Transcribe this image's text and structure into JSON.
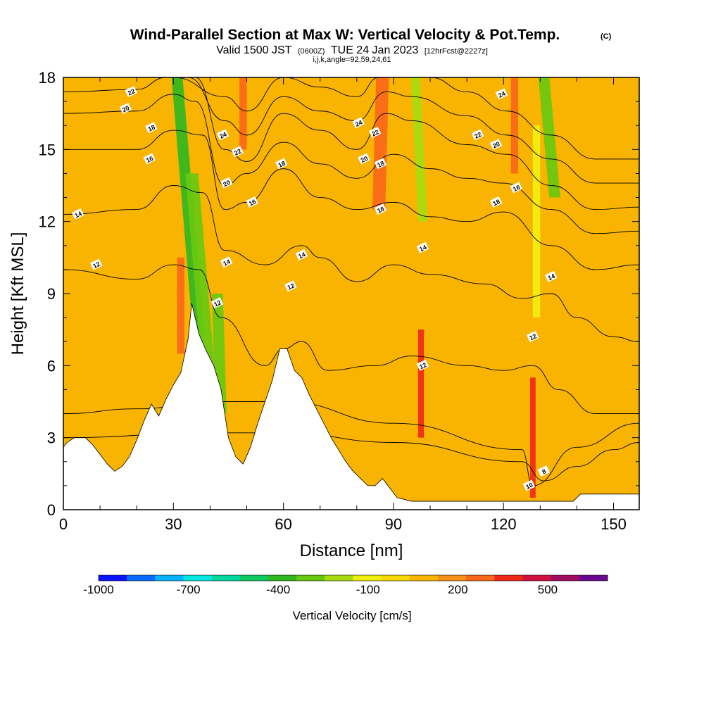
{
  "header": {
    "title_main": "Wind-Parallel Section at Max W: Vertical Velocity & Pot.Temp.",
    "title_copyright": "(C)",
    "subtitle_a": "Valid 1500 JST",
    "subtitle_b": "(0600Z)",
    "subtitle_c": "TUE 24 Jan 2023",
    "subtitle_d": "[12hrFcst@2227z]",
    "subtitle_line2": "i,j,k,angle=92,59,24,61"
  },
  "chart_data": {
    "type": "heatmap",
    "xlabel": "Distance [nm]",
    "ylabel": "Height [Kft MSL]",
    "xlim": [
      0,
      157
    ],
    "ylim": [
      0,
      18
    ],
    "xticks": [
      0,
      30,
      60,
      90,
      120,
      150
    ],
    "yticks": [
      0,
      3,
      6,
      9,
      12,
      15,
      18
    ],
    "terrain": {
      "x": [
        0,
        1,
        3,
        6,
        8,
        10,
        12,
        14,
        16,
        18,
        20,
        22,
        24,
        26,
        28,
        30,
        32,
        34,
        35,
        37,
        39,
        41,
        43,
        45,
        47,
        49,
        51,
        53,
        55,
        57,
        59,
        61,
        63,
        65,
        67,
        69,
        71,
        73,
        75,
        77,
        79,
        81,
        83,
        85,
        87,
        89,
        91,
        95,
        100,
        105,
        110,
        115,
        120,
        125,
        130,
        135,
        139,
        141,
        145,
        150,
        157
      ],
      "height_kft": [
        2.6,
        2.8,
        3.0,
        3.0,
        2.7,
        2.3,
        1.9,
        1.6,
        1.8,
        2.2,
        2.9,
        3.7,
        4.4,
        3.9,
        4.6,
        5.2,
        5.7,
        7.1,
        8.6,
        7.3,
        6.6,
        6.0,
        5.0,
        3.0,
        2.2,
        1.9,
        2.6,
        3.6,
        4.5,
        5.4,
        6.7,
        6.7,
        5.8,
        5.5,
        4.8,
        4.2,
        3.6,
        3.0,
        2.5,
        2.0,
        1.6,
        1.3,
        1.0,
        1.0,
        1.3,
        0.9,
        0.5,
        0.35,
        0.35,
        0.35,
        0.35,
        0.35,
        0.35,
        0.35,
        0.35,
        0.35,
        0.35,
        0.65,
        0.65,
        0.65,
        0.65
      ]
    },
    "vertical_velocity_features": [
      {
        "x_center": 37.0,
        "width_nm": 3.0,
        "y_range": [
          7.0,
          18.0
        ],
        "slant_nm": -6.0,
        "value": -350
      },
      {
        "x_center": 40.0,
        "width_nm": 3.5,
        "y_range": [
          5.0,
          14.0
        ],
        "slant_nm": -5.0,
        "value": -280
      },
      {
        "x_center": 43.0,
        "width_nm": 3.0,
        "y_range": [
          4.0,
          9.0
        ],
        "slant_nm": -1.0,
        "value": -220
      },
      {
        "x_center": 134.0,
        "width_nm": 3.0,
        "y_range": [
          13.0,
          18.0
        ],
        "slant_nm": -3.0,
        "value": -300
      },
      {
        "x_center": 98.0,
        "width_nm": 2.5,
        "y_range": [
          12.0,
          18.0
        ],
        "slant_nm": -2.0,
        "value": -200
      },
      {
        "x_center": 129.0,
        "width_nm": 2.0,
        "y_range": [
          8.0,
          16.0
        ],
        "slant_nm": 0.0,
        "value": -100
      },
      {
        "x_center": 32.0,
        "width_nm": 2.0,
        "y_range": [
          6.5,
          10.5
        ],
        "slant_nm": 0.0,
        "value": 330
      },
      {
        "x_center": 49.0,
        "width_nm": 2.0,
        "y_range": [
          15.0,
          18.0
        ],
        "slant_nm": 0.0,
        "value": 320
      },
      {
        "x_center": 86.0,
        "width_nm": 3.5,
        "y_range": [
          12.5,
          18.0
        ],
        "slant_nm": 1.0,
        "value": 360
      },
      {
        "x_center": 97.5,
        "width_nm": 1.6,
        "y_range": [
          3.0,
          7.5
        ],
        "slant_nm": 0.0,
        "value": 400
      },
      {
        "x_center": 123.0,
        "width_nm": 2.0,
        "y_range": [
          14.0,
          18.0
        ],
        "slant_nm": 0.0,
        "value": 320
      },
      {
        "x_center": 128.0,
        "width_nm": 1.5,
        "y_range": [
          0.5,
          5.5
        ],
        "slant_nm": 0.0,
        "value": 420
      }
    ],
    "potential_temperature_contours": [
      {
        "label": "8",
        "points": [
          [
            0,
            3.0
          ],
          [
            40,
            3.2
          ],
          [
            60,
            3.2
          ],
          [
            90,
            2.8
          ],
          [
            125,
            2.0
          ],
          [
            131,
            1.2
          ],
          [
            140,
            1.8
          ],
          [
            150,
            2.5
          ],
          [
            157,
            2.8
          ]
        ]
      },
      {
        "label": "10",
        "points": [
          [
            0,
            4.0
          ],
          [
            20,
            4.2
          ],
          [
            40,
            4.5
          ],
          [
            60,
            4.5
          ],
          [
            90,
            3.6
          ],
          [
            125,
            2.5
          ],
          [
            128,
            1.0
          ],
          [
            140,
            2.6
          ],
          [
            157,
            3.6
          ]
        ]
      },
      {
        "label": "12",
        "points": [
          [
            0,
            10.0
          ],
          [
            20,
            9.6
          ],
          [
            30,
            10.2
          ],
          [
            37,
            10.0
          ],
          [
            43,
            8.0
          ],
          [
            55,
            6.0
          ],
          [
            60,
            6.7
          ],
          [
            65,
            7.0
          ],
          [
            72,
            5.8
          ],
          [
            85,
            6.0
          ],
          [
            95,
            6.4
          ],
          [
            110,
            6.0
          ],
          [
            120,
            5.8
          ],
          [
            128,
            6.0
          ],
          [
            135,
            5.0
          ],
          [
            145,
            4.0
          ],
          [
            157,
            4.0
          ]
        ]
      },
      {
        "label": "14",
        "points": [
          [
            0,
            12.3
          ],
          [
            20,
            12.5
          ],
          [
            30,
            13.5
          ],
          [
            38,
            13.2
          ],
          [
            44,
            10.8
          ],
          [
            55,
            10.2
          ],
          [
            65,
            11.0
          ],
          [
            70,
            10.5
          ],
          [
            80,
            9.5
          ],
          [
            90,
            10.2
          ],
          [
            100,
            9.8
          ],
          [
            115,
            9.4
          ],
          [
            125,
            8.8
          ],
          [
            133,
            9.0
          ],
          [
            140,
            8.0
          ],
          [
            150,
            7.2
          ],
          [
            157,
            7.0
          ]
        ]
      },
      {
        "label": "16",
        "points": [
          [
            0,
            15.0
          ],
          [
            20,
            15.0
          ],
          [
            30,
            15.8
          ],
          [
            38,
            15.6
          ],
          [
            44,
            12.5
          ],
          [
            50,
            12.8
          ],
          [
            60,
            14.2
          ],
          [
            70,
            13.0
          ],
          [
            80,
            12.5
          ],
          [
            90,
            12.8
          ],
          [
            100,
            12.2
          ],
          [
            110,
            12.0
          ],
          [
            120,
            12.4
          ],
          [
            133,
            11.0
          ],
          [
            145,
            10.0
          ],
          [
            157,
            10.2
          ]
        ]
      },
      {
        "label": "18",
        "points": [
          [
            0,
            16.5
          ],
          [
            20,
            16.6
          ],
          [
            30,
            17.3
          ],
          [
            36,
            17.0
          ],
          [
            44,
            13.5
          ],
          [
            50,
            14.0
          ],
          [
            60,
            15.3
          ],
          [
            70,
            14.4
          ],
          [
            80,
            13.8
          ],
          [
            90,
            14.8
          ],
          [
            100,
            14.2
          ],
          [
            110,
            13.8
          ],
          [
            120,
            13.6
          ],
          [
            133,
            12.5
          ],
          [
            145,
            11.5
          ],
          [
            157,
            11.6
          ]
        ]
      },
      {
        "label": "20",
        "points": [
          [
            0,
            17.4
          ],
          [
            20,
            17.5
          ],
          [
            28,
            18.0
          ],
          [
            36,
            18.0
          ],
          [
            44,
            15.0
          ],
          [
            50,
            14.5
          ],
          [
            60,
            16.5
          ],
          [
            70,
            15.8
          ],
          [
            80,
            15.0
          ],
          [
            88,
            16.5
          ],
          [
            95,
            16.2
          ],
          [
            110,
            15.2
          ],
          [
            121,
            14.8
          ],
          [
            133,
            13.5
          ],
          [
            145,
            12.5
          ],
          [
            157,
            12.6
          ]
        ]
      },
      {
        "label": "22",
        "points": [
          [
            0,
            18.0
          ],
          [
            25,
            18.0
          ],
          [
            34,
            18.0
          ],
          [
            44,
            16.2
          ],
          [
            50,
            15.6
          ],
          [
            60,
            17.2
          ],
          [
            70,
            16.6
          ],
          [
            80,
            16.2
          ],
          [
            88,
            17.4
          ],
          [
            95,
            17.2
          ],
          [
            110,
            16.4
          ],
          [
            121,
            15.6
          ],
          [
            133,
            14.6
          ],
          [
            145,
            13.6
          ],
          [
            157,
            13.6
          ]
        ]
      },
      {
        "label": "24",
        "points": [
          [
            30,
            18.0
          ],
          [
            44,
            17.2
          ],
          [
            50,
            16.6
          ],
          [
            60,
            18.0
          ],
          [
            70,
            17.6
          ],
          [
            80,
            17.2
          ],
          [
            86,
            18.0
          ],
          [
            100,
            18.0
          ],
          [
            110,
            17.4
          ],
          [
            121,
            16.6
          ],
          [
            133,
            15.6
          ],
          [
            145,
            14.6
          ],
          [
            157,
            14.6
          ]
        ]
      }
    ],
    "contour_labels": [
      {
        "text": "22",
        "x": 18.5,
        "y": 17.4
      },
      {
        "text": "20",
        "x": 17.0,
        "y": 16.7
      },
      {
        "text": "18",
        "x": 24.0,
        "y": 15.9
      },
      {
        "text": "16",
        "x": 23.5,
        "y": 14.6
      },
      {
        "text": "14",
        "x": 4.0,
        "y": 12.3
      },
      {
        "text": "12",
        "x": 9.0,
        "y": 10.2
      },
      {
        "text": "24",
        "x": 43.5,
        "y": 15.6
      },
      {
        "text": "22",
        "x": 47.5,
        "y": 14.9
      },
      {
        "text": "20",
        "x": 44.5,
        "y": 13.6
      },
      {
        "text": "18",
        "x": 59.5,
        "y": 14.4
      },
      {
        "text": "16",
        "x": 51.5,
        "y": 12.8
      },
      {
        "text": "14",
        "x": 44.5,
        "y": 10.3
      },
      {
        "text": "12",
        "x": 42.0,
        "y": 8.6
      },
      {
        "text": "14",
        "x": 65.0,
        "y": 10.6
      },
      {
        "text": "12",
        "x": 62.0,
        "y": 9.3
      },
      {
        "text": "24",
        "x": 80.5,
        "y": 16.1
      },
      {
        "text": "22",
        "x": 85.0,
        "y": 15.7
      },
      {
        "text": "20",
        "x": 82.0,
        "y": 14.6
      },
      {
        "text": "18",
        "x": 86.5,
        "y": 14.4
      },
      {
        "text": "16",
        "x": 86.5,
        "y": 12.5
      },
      {
        "text": "24",
        "x": 119.5,
        "y": 17.3
      },
      {
        "text": "22",
        "x": 113.0,
        "y": 15.6
      },
      {
        "text": "20",
        "x": 118.0,
        "y": 15.2
      },
      {
        "text": "18",
        "x": 118.0,
        "y": 12.8
      },
      {
        "text": "16",
        "x": 123.5,
        "y": 13.4
      },
      {
        "text": "14",
        "x": 98.0,
        "y": 10.9
      },
      {
        "text": "14",
        "x": 133.0,
        "y": 9.7
      },
      {
        "text": "12",
        "x": 128.0,
        "y": 7.2
      },
      {
        "text": "12",
        "x": 98.0,
        "y": 6.0
      },
      {
        "text": "10",
        "x": 127.0,
        "y": 1.0
      },
      {
        "text": "8",
        "x": 131.0,
        "y": 1.6
      }
    ],
    "colorbar": {
      "label": "Vertical Velocity [cm/s]",
      "tick_labels": [
        "-1000",
        "-700",
        "-400",
        "-100",
        "200",
        "500"
      ],
      "tick_values": [
        -1000,
        -700,
        -400,
        -100,
        200,
        500
      ],
      "bin_edges": [
        -1000,
        -900,
        -800,
        -700,
        -600,
        -500,
        -400,
        -300,
        -200,
        -100,
        0,
        100,
        200,
        300,
        400,
        500,
        600,
        700
      ],
      "colors": [
        "#0a14ff",
        "#0a6cff",
        "#08b2ff",
        "#00e8e0",
        "#00d8a0",
        "#10c860",
        "#30b820",
        "#68c810",
        "#a8dc10",
        "#f0f010",
        "#f8d800",
        "#f8b400",
        "#f89018",
        "#f86818",
        "#f02818",
        "#d01040",
        "#a00c60",
        "#6c0890"
      ]
    }
  }
}
